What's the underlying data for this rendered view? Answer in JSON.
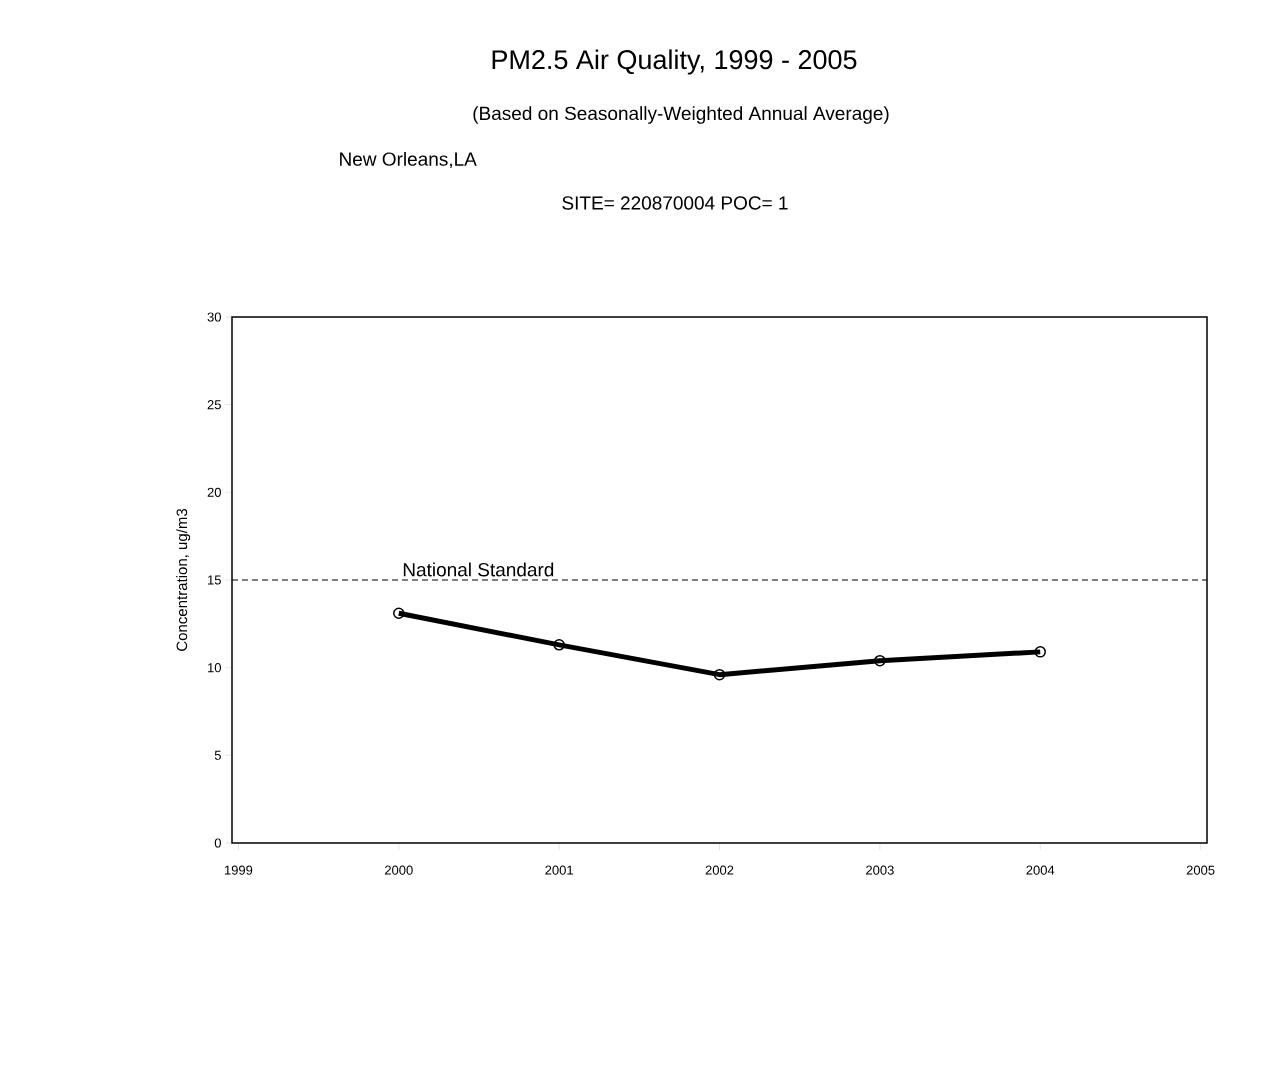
{
  "chart_data": {
    "type": "line",
    "title": "PM2.5 Air Quality, 1999 - 2005",
    "subtitle": "(Based on Seasonally-Weighted Annual Average)",
    "annotations": [
      "New Orleans,LA",
      "SITE= 220870004 POC= 1"
    ],
    "ylabel": "Concentration, ug/m3",
    "x": [
      2000,
      2001,
      2002,
      2003,
      2004
    ],
    "series": [
      {
        "color": "#000000",
        "values": [
          13.1,
          11.3,
          9.6,
          10.4,
          10.9
        ]
      }
    ],
    "xlim": [
      1998.96,
      2005.04
    ],
    "ylim": [
      0,
      30
    ],
    "xticks": [
      1999,
      2000,
      2001,
      2002,
      2003,
      2004,
      2005
    ],
    "yticks": [
      0,
      5,
      10,
      15,
      20,
      25,
      30
    ],
    "ref_lines": [
      {
        "axis": "y",
        "value": 15,
        "label": "National Standard",
        "color": "#000000",
        "line_style": "dashed"
      }
    ],
    "marker": "circle",
    "line_style": "solid",
    "grid": false
  }
}
